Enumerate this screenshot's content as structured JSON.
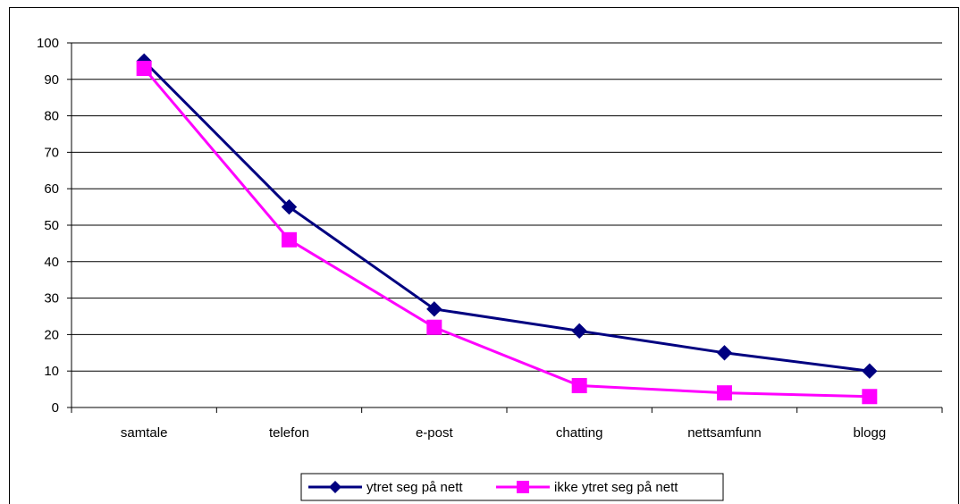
{
  "chart_data": {
    "type": "line",
    "title": "",
    "xlabel": "",
    "ylabel": "",
    "categories": [
      "samtale",
      "telefon",
      "e-post",
      "chatting",
      "nettsamfunn",
      "blogg"
    ],
    "ylim": [
      0,
      100
    ],
    "yticks": [
      0,
      10,
      20,
      30,
      40,
      50,
      60,
      70,
      80,
      90,
      100
    ],
    "grid": "horizontal",
    "legend_position": "bottom",
    "series": [
      {
        "name": "ytret seg på nett",
        "color": "#000080",
        "marker": "diamond",
        "values": [
          95,
          55,
          27,
          21,
          15,
          10
        ]
      },
      {
        "name": "ikke ytret seg på nett",
        "color": "#FF00FF",
        "marker": "square",
        "values": [
          93,
          46,
          22,
          6,
          4,
          3
        ]
      }
    ]
  }
}
